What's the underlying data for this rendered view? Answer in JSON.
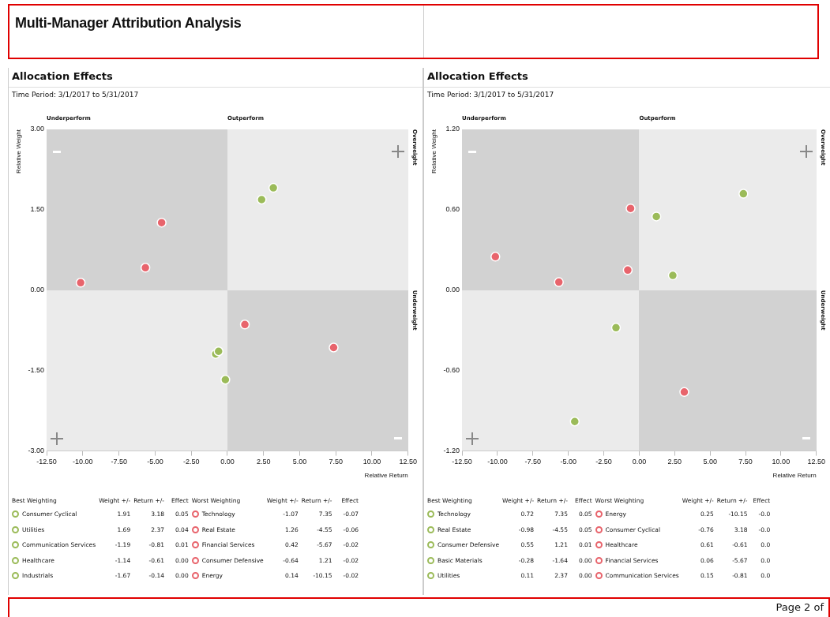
{
  "chart_data": [
    {
      "type": "scatter",
      "title": "Allocation Effects",
      "subtitle": "Time Period: 3/1/2017 to 5/31/2017",
      "xlabel": "Relative Return",
      "ylabel": "Relative Weight",
      "xlim": [
        -12.5,
        12.5
      ],
      "xticks": [
        {
          "value": -12.5,
          "label": "-12.50"
        },
        {
          "value": -10,
          "label": "-10.00"
        },
        {
          "value": -7.5,
          "label": "-7.50"
        },
        {
          "value": -5,
          "label": "-5.00"
        },
        {
          "value": -2.5,
          "label": "-2.50"
        },
        {
          "value": 0,
          "label": "0.00"
        },
        {
          "value": 2.5,
          "label": "2.50"
        },
        {
          "value": 5,
          "label": "5.00"
        },
        {
          "value": 7.5,
          "label": "7.50"
        },
        {
          "value": 10,
          "label": "10.00"
        },
        {
          "value": 12.5,
          "label": "12.50"
        }
      ],
      "ylim": [
        -3,
        3
      ],
      "yticks": [
        {
          "value": -3,
          "label": "-3.00"
        },
        {
          "value": -1.5,
          "label": "-1.50"
        },
        {
          "value": 0,
          "label": "0.00"
        },
        {
          "value": 1.5,
          "label": "1.50"
        },
        {
          "value": 3,
          "label": "3.00"
        }
      ],
      "grid": false,
      "marker": "circle",
      "series": [
        {
          "color": "#9bbb59",
          "x": [
            3.18,
            2.37,
            -0.81,
            -0.61,
            -0.14
          ],
          "values": [
            1.91,
            1.69,
            -1.19,
            -1.14,
            -1.67
          ]
        },
        {
          "color": "#e8646c",
          "x": [
            7.35,
            -4.55,
            -5.67,
            1.21,
            -10.15
          ],
          "values": [
            -1.07,
            1.26,
            0.42,
            -0.64,
            0.14
          ]
        }
      ],
      "annotations": [
        "Multi-Manager Attribution Analysis",
        "Page 2 of",
        "Underperform",
        "Outperform",
        "Overweight",
        "Underweight"
      ]
    },
    {
      "type": "other",
      "annotations": [
        "Best Weighting",
        "Weight +/-",
        "Return +/-",
        "Effect",
        "Worst Weighting",
        "Weight +/-",
        "Return +/-",
        "Effect",
        "Consumer Cyclical",
        "1.91",
        "3.18",
        "0.05",
        "Technology",
        "-1.07",
        "7.35",
        "-0.07",
        "Utilities",
        "1.69",
        "2.37",
        "0.04",
        "Real Estate",
        "1.26",
        "-4.55",
        "-0.06",
        "Communication Services",
        "-1.19",
        "-0.81",
        "0.01",
        "Financial Services",
        "0.42",
        "-5.67",
        "-0.02",
        "Healthcare",
        "-1.14",
        "-0.61",
        "0.00",
        "Consumer Defensive",
        "-0.64",
        "1.21",
        "-0.02",
        "Industrials",
        "-1.67",
        "-0.14",
        "0.00",
        "Energy",
        "0.14",
        "-10.15",
        "-0.02"
      ]
    },
    {
      "type": "scatter",
      "title": "Allocation Effects",
      "subtitle": "Time Period: 3/1/2017 to 5/31/2017",
      "xlabel": "Relative Return",
      "ylabel": "Relative Weight",
      "xlim": [
        -12.5,
        12.5
      ],
      "xticks": [
        {
          "value": -12.5,
          "label": "-12.50"
        },
        {
          "value": -10,
          "label": "-10.00"
        },
        {
          "value": -7.5,
          "label": "-7.50"
        },
        {
          "value": -5,
          "label": "-5.00"
        },
        {
          "value": -2.5,
          "label": "-2.50"
        },
        {
          "value": 0,
          "label": "0.00"
        },
        {
          "value": 2.5,
          "label": "2.50"
        },
        {
          "value": 5,
          "label": "5.00"
        },
        {
          "value": 7.5,
          "label": "7.50"
        },
        {
          "value": 10,
          "label": "10.00"
        },
        {
          "value": 12.5,
          "label": "12.50"
        }
      ],
      "ylim": [
        -1.2,
        1.2
      ],
      "yticks": [
        {
          "value": -1.2,
          "label": "-1.20"
        },
        {
          "value": -0.6,
          "label": "-0.60"
        },
        {
          "value": 0,
          "label": "0.00"
        },
        {
          "value": 0.6,
          "label": "0.60"
        },
        {
          "value": 1.2,
          "label": "1.20"
        }
      ],
      "grid": false,
      "marker": "circle",
      "series": [
        {
          "color": "#9bbb59",
          "x": [
            7.35,
            -4.55,
            1.21,
            -1.64,
            2.37
          ],
          "values": [
            0.72,
            -0.98,
            0.55,
            -0.28,
            0.11
          ]
        },
        {
          "color": "#e8646c",
          "x": [
            -10.15,
            3.18,
            -0.61,
            -5.67,
            -0.81
          ],
          "values": [
            0.25,
            -0.76,
            0.61,
            0.06,
            0.15
          ]
        }
      ],
      "annotations": [
        "Underperform",
        "Outperform",
        "Overweight",
        "Underweight"
      ]
    },
    {
      "type": "other",
      "annotations": [
        "Best Weighting",
        "Weight +/-",
        "Return +/-",
        "Effect",
        "Worst Weighting",
        "Weight +/-",
        "Return +/-",
        "Effect",
        "Technology",
        "0.72",
        "7.35",
        "0.05",
        "Energy",
        "0.25",
        "-10.15",
        "-0.0",
        "Real Estate",
        "-0.98",
        "-4.55",
        "0.05",
        "Consumer Cyclical",
        "-0.76",
        "3.18",
        "-0.0",
        "Consumer Defensive",
        "0.55",
        "1.21",
        "0.01",
        "Healthcare",
        "0.61",
        "-0.61",
        "0.0",
        "Basic Materials",
        "-0.28",
        "-1.64",
        "0.00",
        "Financial Services",
        "0.06",
        "-5.67",
        "0.0",
        "Utilities",
        "0.11",
        "2.37",
        "0.00",
        "Communication Services",
        "0.15",
        "-0.81",
        "0.0"
      ]
    }
  ]
}
